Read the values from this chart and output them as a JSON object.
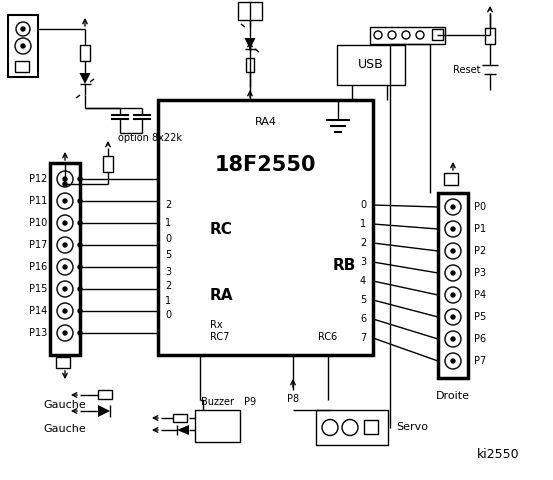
{
  "title": "ki2550",
  "bg_color": "#ffffff",
  "chip_label": "18F2550",
  "chip_sublabel": "RA4",
  "rc_label": "RC",
  "ra_label": "RA",
  "rb_label": "RB",
  "rc_pins_left": [
    "2",
    "1",
    "0"
  ],
  "ra_pins_left": [
    "5",
    "3",
    "2",
    "1",
    "0"
  ],
  "rb_pins_right": [
    "0",
    "1",
    "2",
    "3",
    "4",
    "5",
    "6",
    "7"
  ],
  "left_ports": [
    "P12",
    "P11",
    "P10",
    "P17",
    "P16",
    "P15",
    "P14",
    "P13"
  ],
  "right_ports": [
    "P0",
    "P1",
    "P2",
    "P3",
    "P4",
    "P5",
    "P6",
    "P7"
  ],
  "gauche_label": "Gauche",
  "droite_label": "Droite",
  "rx_label": "Rx",
  "rc7_label": "RC7",
  "rc6_label": "RC6",
  "usb_label": "USB",
  "reset_label": "Reset",
  "buzzer_label": "Buzzer",
  "servo_label": "Servo",
  "p8_label": "P8",
  "p9_label": "P9",
  "option_label": "option 8x22k"
}
